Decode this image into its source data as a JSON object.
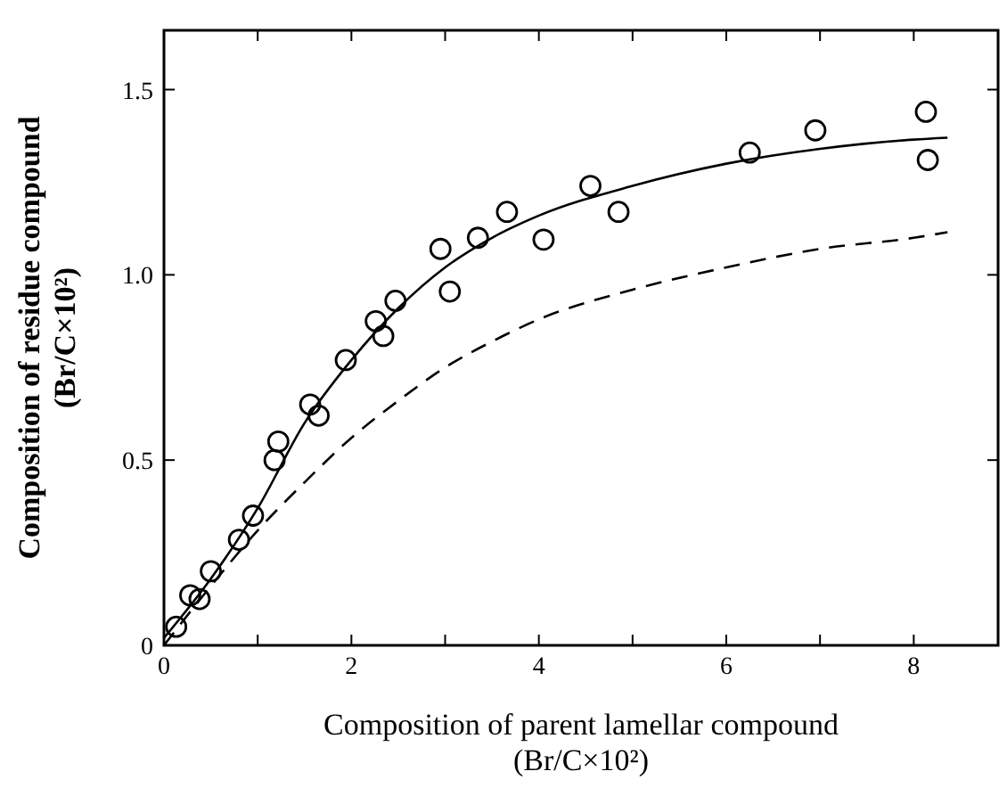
{
  "chart_data": {
    "type": "scatter",
    "xlabel": "Composition of parent lamellar compound\n(Br/C×10²)",
    "ylabel": "Composition of residue compound\n(Br/C×10²)",
    "xlim": [
      0,
      8.9
    ],
    "ylim": [
      0,
      1.66
    ],
    "xticks": [
      0,
      {
        "value": 1,
        "label": null
      },
      2,
      {
        "value": 3,
        "label": null
      },
      4,
      {
        "value": 5,
        "label": null
      },
      6,
      {
        "value": 7,
        "label": null
      },
      8
    ],
    "yticks": [
      0,
      0.5,
      {
        "value": 1,
        "label": "1.0"
      },
      1.5
    ],
    "grid": false,
    "series": [
      {
        "marker": "circle",
        "color": "#000000",
        "x": [
          0.13,
          0.28,
          0.38,
          0.5,
          0.8,
          0.95,
          1.18,
          1.22,
          1.56,
          1.65,
          1.94,
          2.26,
          2.34,
          2.47,
          2.95,
          3.05,
          3.35,
          3.66,
          4.05,
          4.55,
          4.85,
          6.25,
          6.95,
          8.13,
          8.15
        ],
        "values": [
          0.05,
          0.135,
          0.125,
          0.2,
          0.285,
          0.35,
          0.5,
          0.55,
          0.65,
          0.62,
          0.77,
          0.875,
          0.835,
          0.93,
          1.07,
          0.955,
          1.1,
          1.17,
          1.095,
          1.24,
          1.17,
          1.33,
          1.39,
          1.44,
          1.31
        ]
      },
      {
        "type": "line",
        "line_style": "solid",
        "color": "#000000",
        "x": [
          0,
          0.5,
          1,
          1.5,
          2,
          2.5,
          3,
          3.5,
          4,
          5,
          6,
          7,
          8,
          8.36
        ],
        "values": [
          0.02,
          0.18,
          0.37,
          0.6,
          0.77,
          0.91,
          1.02,
          1.1,
          1.16,
          1.24,
          1.3,
          1.34,
          1.365,
          1.37
        ]
      },
      {
        "type": "line",
        "line_style": "dashed",
        "color": "#000000",
        "x": [
          0,
          0.5,
          1,
          1.5,
          2,
          2.5,
          3,
          3.5,
          4,
          5,
          6,
          7,
          8,
          8.36
        ],
        "values": [
          0,
          0.16,
          0.31,
          0.44,
          0.56,
          0.66,
          0.75,
          0.82,
          0.88,
          0.96,
          1.02,
          1.07,
          1.1,
          1.115
        ]
      }
    ]
  }
}
